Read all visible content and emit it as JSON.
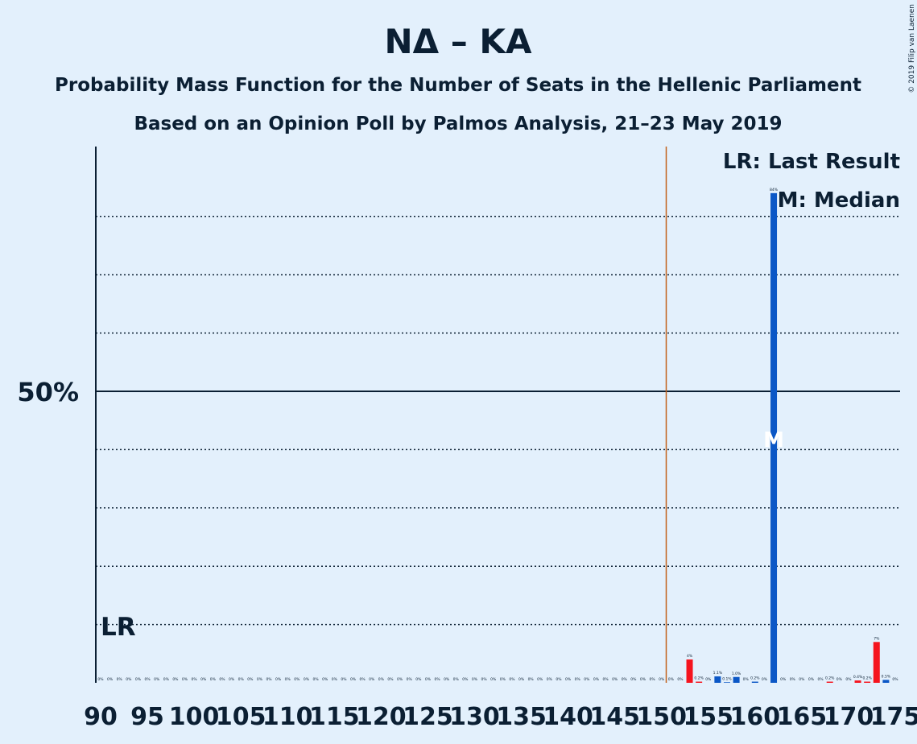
{
  "header": {
    "title": "ΝΔ – ΚΑ",
    "subtitle": "Probability Mass Function for the Number of Seats in the Hellenic Parliament",
    "source_line": "Based on an Opinion Poll by Palmos Analysis, 21–23 May 2019",
    "copyright": "© 2019 Filip van Laenen"
  },
  "legend": {
    "last_result": "LR: Last Result",
    "median": "M: Median"
  },
  "markers": {
    "lr_label": "LR",
    "median_label": "M"
  },
  "colors": {
    "background": "#e3f0fc",
    "blue_bar": "#0b57c6",
    "red_bar": "#f5141e",
    "majority_line": "#c2601a",
    "text": "#0b1f33"
  },
  "chart_data": {
    "type": "bar",
    "xlim": [
      90,
      175
    ],
    "ylim": [
      0,
      0.92
    ],
    "x_ticks": [
      90,
      95,
      100,
      105,
      110,
      115,
      120,
      125,
      130,
      135,
      140,
      145,
      150,
      155,
      160,
      165,
      170,
      175
    ],
    "y_ticks_labeled": [
      {
        "value": 0.5,
        "label": "50%"
      }
    ],
    "gridlines": [
      0.1,
      0.2,
      0.3,
      0.4,
      0.6,
      0.7,
      0.8
    ],
    "majority_line_x": 151,
    "last_result_seats": 90,
    "median_seats": 162,
    "bars": [
      {
        "x": 90,
        "value": 0,
        "label": "0%"
      },
      {
        "x": 91,
        "value": 0,
        "label": "0%"
      },
      {
        "x": 92,
        "value": 0,
        "label": "0%"
      },
      {
        "x": 93,
        "value": 0,
        "label": "0%"
      },
      {
        "x": 94,
        "value": 0,
        "label": "0%"
      },
      {
        "x": 95,
        "value": 0,
        "label": "0%"
      },
      {
        "x": 96,
        "value": 0,
        "label": "0%"
      },
      {
        "x": 97,
        "value": 0,
        "label": "0%"
      },
      {
        "x": 98,
        "value": 0,
        "label": "0%"
      },
      {
        "x": 99,
        "value": 0,
        "label": "0%"
      },
      {
        "x": 100,
        "value": 0,
        "label": "0%"
      },
      {
        "x": 101,
        "value": 0,
        "label": "0%"
      },
      {
        "x": 102,
        "value": 0,
        "label": "0%"
      },
      {
        "x": 103,
        "value": 0,
        "label": "0%"
      },
      {
        "x": 104,
        "value": 0,
        "label": "0%"
      },
      {
        "x": 105,
        "value": 0,
        "label": "0%"
      },
      {
        "x": 106,
        "value": 0,
        "label": "0%"
      },
      {
        "x": 107,
        "value": 0,
        "label": "0%"
      },
      {
        "x": 108,
        "value": 0,
        "label": "0%"
      },
      {
        "x": 109,
        "value": 0,
        "label": "0%"
      },
      {
        "x": 110,
        "value": 0,
        "label": "0%"
      },
      {
        "x": 111,
        "value": 0,
        "label": "0%"
      },
      {
        "x": 112,
        "value": 0,
        "label": "0%"
      },
      {
        "x": 113,
        "value": 0,
        "label": "0%"
      },
      {
        "x": 114,
        "value": 0,
        "label": "0%"
      },
      {
        "x": 115,
        "value": 0,
        "label": "0%"
      },
      {
        "x": 116,
        "value": 0,
        "label": "0%"
      },
      {
        "x": 117,
        "value": 0,
        "label": "0%"
      },
      {
        "x": 118,
        "value": 0,
        "label": "0%"
      },
      {
        "x": 119,
        "value": 0,
        "label": "0%"
      },
      {
        "x": 120,
        "value": 0,
        "label": "0%"
      },
      {
        "x": 121,
        "value": 0,
        "label": "0%"
      },
      {
        "x": 122,
        "value": 0,
        "label": "0%"
      },
      {
        "x": 123,
        "value": 0,
        "label": "0%"
      },
      {
        "x": 124,
        "value": 0,
        "label": "0%"
      },
      {
        "x": 125,
        "value": 0,
        "label": "0%"
      },
      {
        "x": 126,
        "value": 0,
        "label": "0%"
      },
      {
        "x": 127,
        "value": 0,
        "label": "0%"
      },
      {
        "x": 128,
        "value": 0,
        "label": "0%"
      },
      {
        "x": 129,
        "value": 0,
        "label": "0%"
      },
      {
        "x": 130,
        "value": 0,
        "label": "0%"
      },
      {
        "x": 131,
        "value": 0,
        "label": "0%"
      },
      {
        "x": 132,
        "value": 0,
        "label": "0%"
      },
      {
        "x": 133,
        "value": 0,
        "label": "0%"
      },
      {
        "x": 134,
        "value": 0,
        "label": "0%"
      },
      {
        "x": 135,
        "value": 0,
        "label": "0%"
      },
      {
        "x": 136,
        "value": 0,
        "label": "0%"
      },
      {
        "x": 137,
        "value": 0,
        "label": "0%"
      },
      {
        "x": 138,
        "value": 0,
        "label": "0%"
      },
      {
        "x": 139,
        "value": 0,
        "label": "0%"
      },
      {
        "x": 140,
        "value": 0,
        "label": "0%"
      },
      {
        "x": 141,
        "value": 0,
        "label": "0%"
      },
      {
        "x": 142,
        "value": 0,
        "label": "0%"
      },
      {
        "x": 143,
        "value": 0,
        "label": "0%"
      },
      {
        "x": 144,
        "value": 0,
        "label": "0%"
      },
      {
        "x": 145,
        "value": 0,
        "label": "0%"
      },
      {
        "x": 146,
        "value": 0,
        "label": "0%"
      },
      {
        "x": 147,
        "value": 0,
        "label": "0%"
      },
      {
        "x": 148,
        "value": 0,
        "label": "0%"
      },
      {
        "x": 149,
        "value": 0,
        "label": "0%"
      },
      {
        "x": 150,
        "value": 0,
        "label": "0%"
      },
      {
        "x": 151,
        "value": 0,
        "label": "0%"
      },
      {
        "x": 152,
        "value": 0,
        "label": "0%"
      },
      {
        "x": 153,
        "value": 0.04,
        "label": "4%",
        "color": "red"
      },
      {
        "x": 154,
        "value": 0.002,
        "label": "0.2%",
        "color": "red"
      },
      {
        "x": 155,
        "value": 0,
        "label": "0%"
      },
      {
        "x": 156,
        "value": 0.011,
        "label": "1.1%",
        "color": "blue"
      },
      {
        "x": 157,
        "value": 0.001,
        "label": "0.1%",
        "color": "blue"
      },
      {
        "x": 158,
        "value": 0.01,
        "label": "1.0%",
        "color": "blue"
      },
      {
        "x": 159,
        "value": 0,
        "label": "0%"
      },
      {
        "x": 160,
        "value": 0.002,
        "label": "0.2%",
        "color": "blue"
      },
      {
        "x": 161,
        "value": 0,
        "label": "0%"
      },
      {
        "x": 162,
        "value": 0.84,
        "label": "84%",
        "color": "blue"
      },
      {
        "x": 163,
        "value": 0,
        "label": "0%"
      },
      {
        "x": 164,
        "value": 0,
        "label": "0%"
      },
      {
        "x": 165,
        "value": 0,
        "label": "0%"
      },
      {
        "x": 166,
        "value": 0,
        "label": "0%"
      },
      {
        "x": 167,
        "value": 0,
        "label": "0%"
      },
      {
        "x": 168,
        "value": 0.002,
        "label": "0.2%",
        "color": "red"
      },
      {
        "x": 169,
        "value": 0,
        "label": "0%"
      },
      {
        "x": 170,
        "value": 0,
        "label": "0%"
      },
      {
        "x": 171,
        "value": 0.004,
        "label": "0.4%",
        "color": "red"
      },
      {
        "x": 172,
        "value": 0.002,
        "label": "0.2%",
        "color": "red"
      },
      {
        "x": 173,
        "value": 0.07,
        "label": "7%",
        "color": "red"
      },
      {
        "x": 174,
        "value": 0.005,
        "label": "0.5%",
        "color": "blue"
      },
      {
        "x": 175,
        "value": 0,
        "label": "0%"
      }
    ]
  }
}
